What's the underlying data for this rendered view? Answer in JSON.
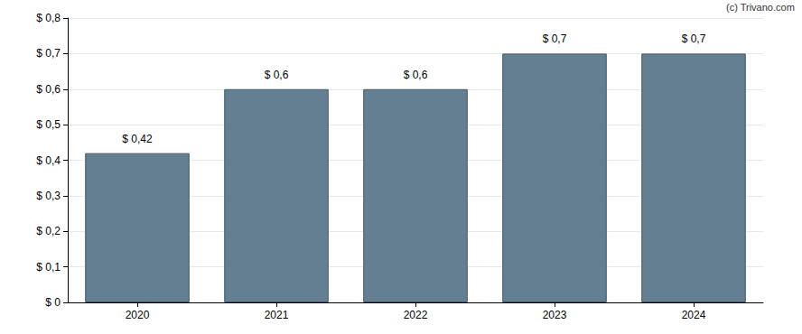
{
  "chart_data": {
    "type": "bar",
    "categories": [
      "2020",
      "2021",
      "2022",
      "2023",
      "2024"
    ],
    "values": [
      0.42,
      0.6,
      0.6,
      0.7,
      0.7
    ],
    "value_labels": [
      "$ 0,42",
      "$ 0,6",
      "$ 0,6",
      "$ 0,7",
      "$ 0,7"
    ],
    "data_labels": true,
    "color": "#647f92",
    "ylim": [
      0,
      0.8
    ],
    "yticks": [
      {
        "value": 0,
        "label": "$ 0"
      },
      {
        "value": 0.1,
        "label": "$ 0,1"
      },
      {
        "value": 0.2,
        "label": "$ 0,2"
      },
      {
        "value": 0.3,
        "label": "$ 0,3"
      },
      {
        "value": 0.4,
        "label": "$ 0,4"
      },
      {
        "value": 0.5,
        "label": "$ 0,5"
      },
      {
        "value": 0.6,
        "label": "$ 0,6"
      },
      {
        "value": 0.7,
        "label": "$ 0,7"
      },
      {
        "value": 0.8,
        "label": "$ 0,8"
      }
    ],
    "grid": true,
    "annotations": [
      "(c) Trivano.com"
    ]
  }
}
